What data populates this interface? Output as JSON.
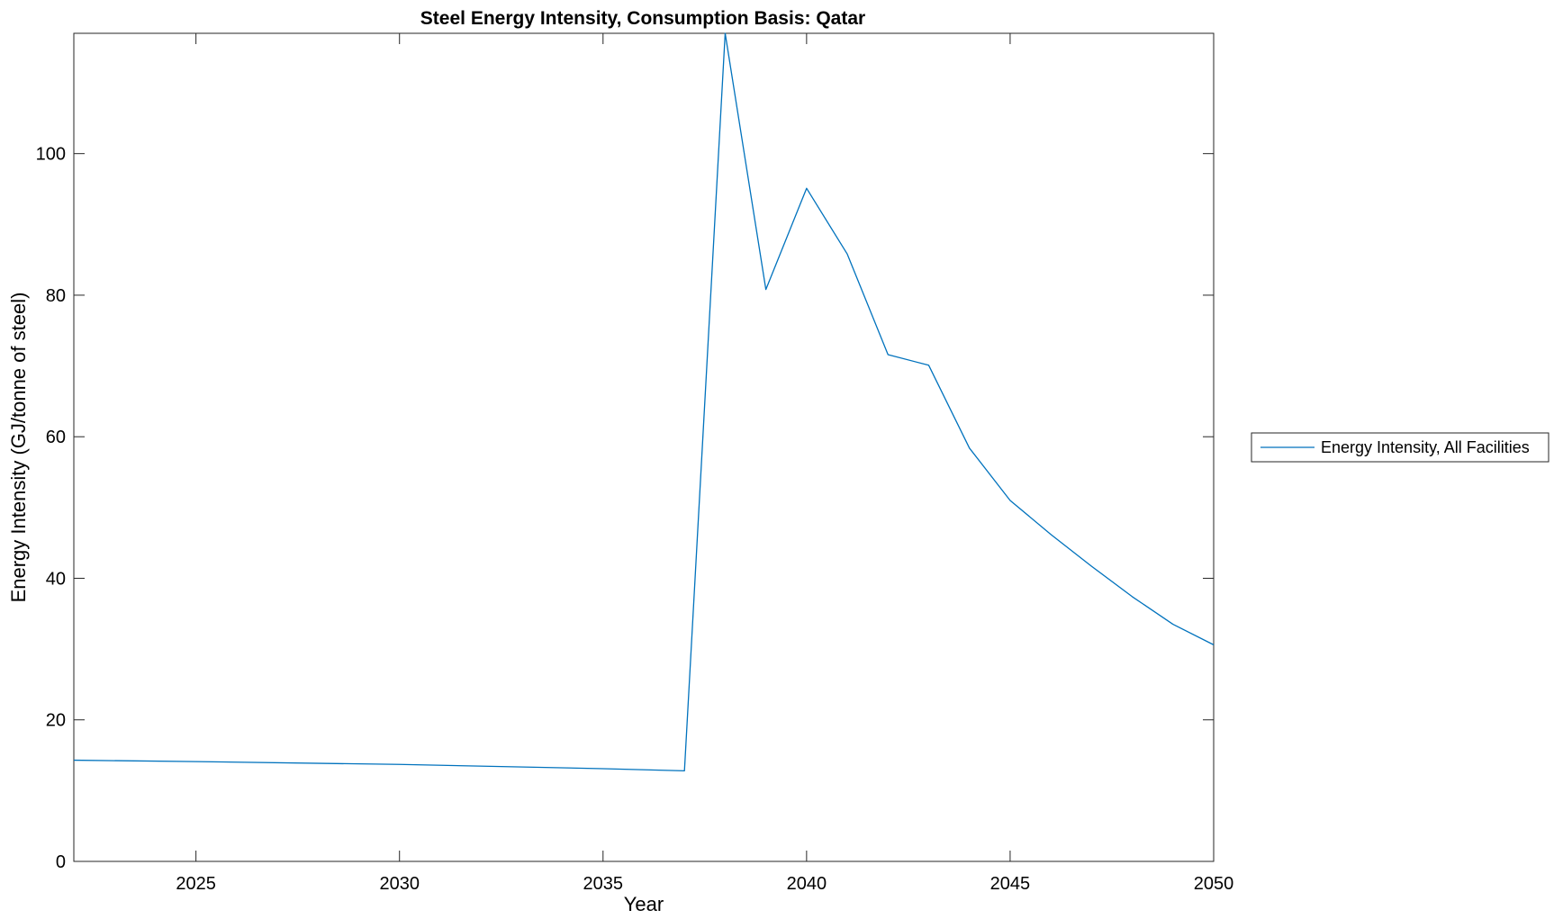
{
  "chart_data": {
    "type": "line",
    "title": "Steel Energy Intensity, Consumption Basis: Qatar",
    "xlabel": "Year",
    "ylabel": "Energy Intensity (GJ/tonne of steel)",
    "xlim": [
      2022,
      2050
    ],
    "ylim": [
      0,
      117
    ],
    "xticks": [
      "2025",
      "2030",
      "2035",
      "2040",
      "2045",
      "2050"
    ],
    "yticks": [
      "0",
      "20",
      "40",
      "60",
      "80",
      "100"
    ],
    "grid": false,
    "legend_position": "outside-right",
    "series": [
      {
        "name": "Energy Intensity, All Facilities",
        "color": "#0072BD",
        "x": [
          2022,
          2025,
          2030,
          2035,
          2037,
          2038,
          2039,
          2040,
          2041,
          2042,
          2043,
          2044,
          2045,
          2046,
          2047,
          2048,
          2049,
          2050
        ],
        "y": [
          14.3,
          14.1,
          13.7,
          13.1,
          12.8,
          117,
          80.8,
          95.1,
          85.8,
          71.6,
          70.1,
          58.4,
          51.0,
          46.2,
          41.7,
          37.4,
          33.5,
          30.6
        ]
      }
    ]
  }
}
